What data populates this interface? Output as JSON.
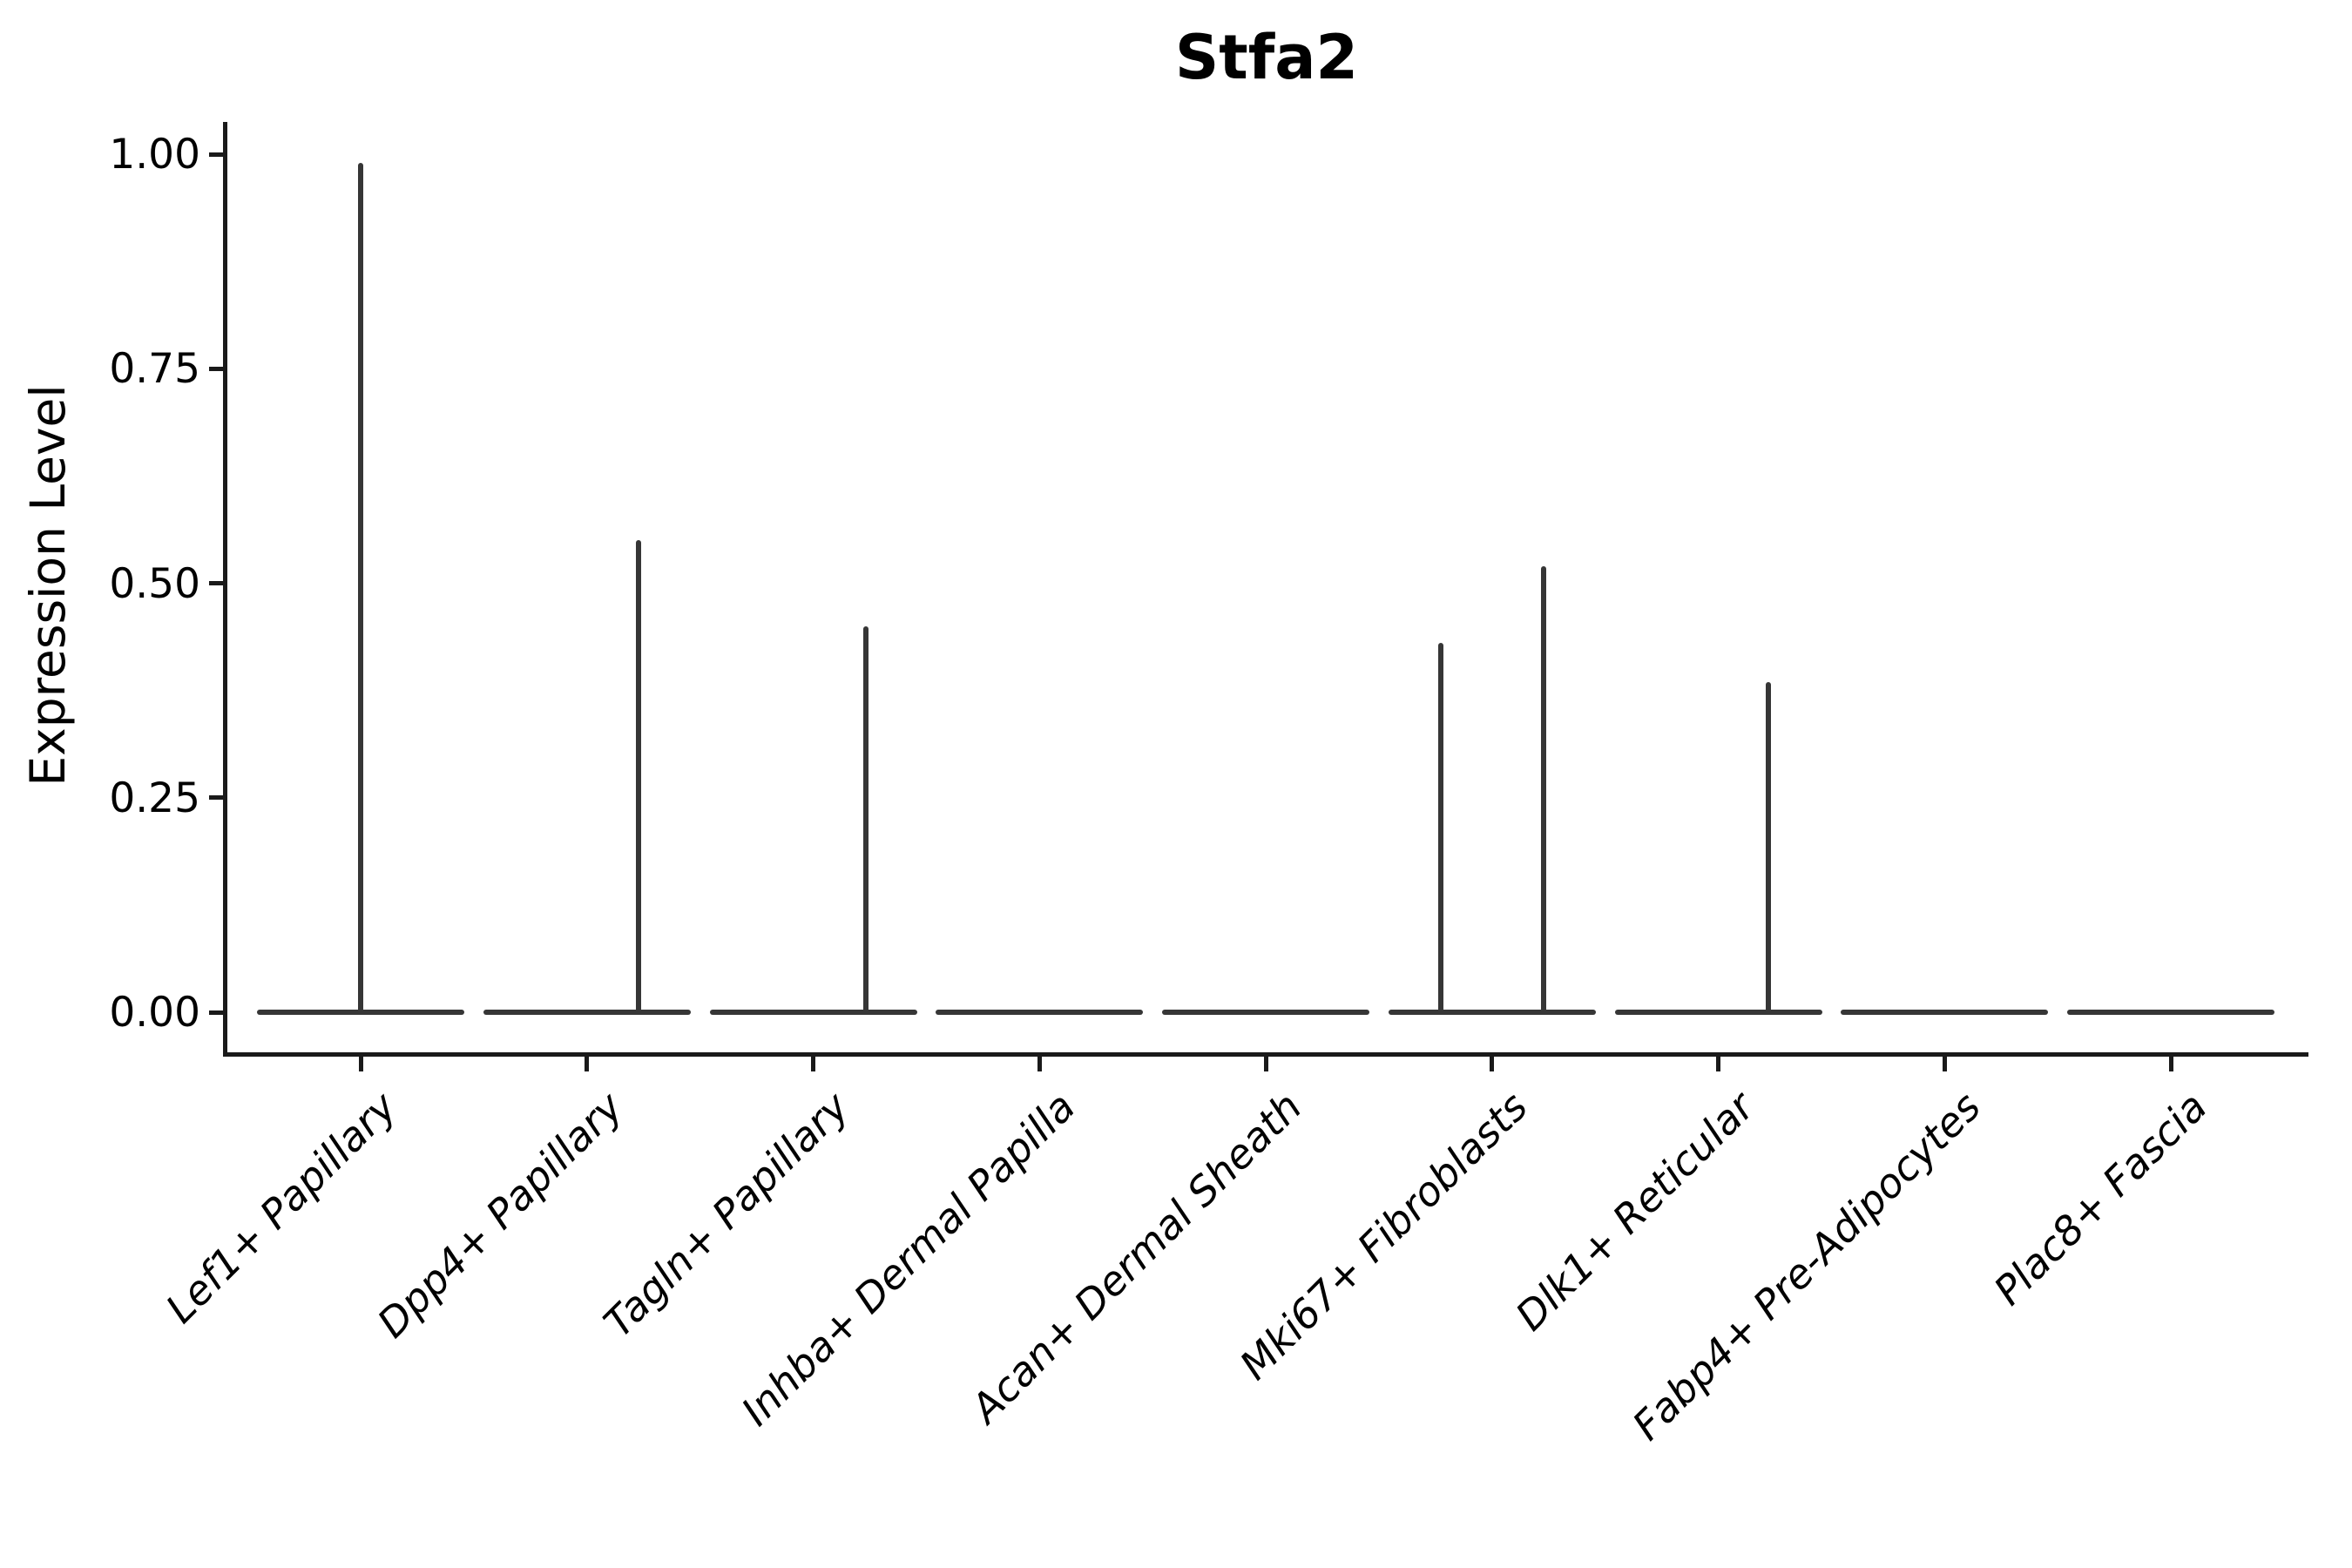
{
  "chart_data": {
    "type": "violin",
    "title": "Stfa2",
    "ylabel": "Expression Level",
    "ylim": [
      0,
      1
    ],
    "yticks": [
      "0.00",
      "0.25",
      "0.50",
      "0.75",
      "1.00"
    ],
    "ytick_values": [
      0,
      0.25,
      0.5,
      0.75,
      1.0
    ],
    "grid": false,
    "legend": "none",
    "categories": [
      "Lef1+ Papillary",
      "Dpp4+ Papillary",
      "Tagln+ Papillary",
      "Inhba+ Dermal Papilla",
      "Acan+ Dermal Sheath",
      "Mki67+ Fibroblasts",
      "Dlk1+ Reticular",
      "Fabp4+ Pre-Adipocytes",
      "Plac8+ Fascia"
    ],
    "violins": [
      {
        "label": "Lef1+ Papillary",
        "bulk_at": 0,
        "spikes": [
          {
            "offset_frac": 0.0,
            "value": 0.99
          }
        ]
      },
      {
        "label": "Dpp4+ Papillary",
        "bulk_at": 0,
        "spikes": [
          {
            "offset_frac": 0.227,
            "value": 0.55
          }
        ]
      },
      {
        "label": "Tagln+ Papillary",
        "bulk_at": 0,
        "spikes": [
          {
            "offset_frac": 0.231,
            "value": 0.45
          }
        ]
      },
      {
        "label": "Inhba+ Dermal Papilla",
        "bulk_at": 0,
        "spikes": []
      },
      {
        "label": "Acan+ Dermal Sheath",
        "bulk_at": 0,
        "spikes": []
      },
      {
        "label": "Mki67+ Fibroblasts",
        "bulk_at": 0,
        "spikes": [
          {
            "offset_frac": -0.227,
            "value": 0.43
          },
          {
            "offset_frac": 0.227,
            "value": 0.52
          }
        ]
      },
      {
        "label": "Dlk1+ Reticular",
        "bulk_at": 0,
        "spikes": [
          {
            "offset_frac": 0.223,
            "value": 0.385
          }
        ]
      },
      {
        "label": "Fabp4+ Pre-Adipocytes",
        "bulk_at": 0,
        "spikes": []
      },
      {
        "label": "Plac8+ Fascia",
        "bulk_at": 0,
        "spikes": []
      }
    ],
    "colors": {
      "violin_stroke": "#363636",
      "axis": "#1a1a1a",
      "text": "#000000",
      "background": "#ffffff"
    }
  }
}
